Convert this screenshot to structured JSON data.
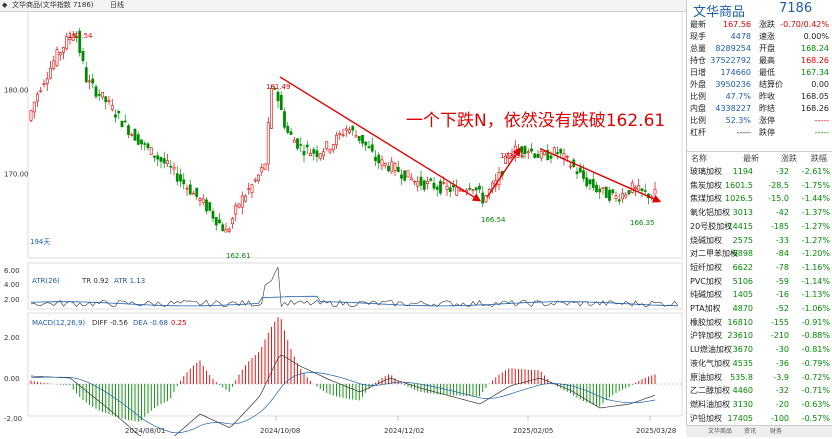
{
  "window": {
    "title_text": "文华商品(文华指数 7186)",
    "menu_label": "日线"
  },
  "annotation": {
    "text": "一个下跌N，依然没有跌破162.61",
    "color": "#e00000"
  },
  "price_labels": {
    "high_1": "187.54",
    "swing_high": "181.49",
    "swing_low": "162.61",
    "bounce_high": "173.34",
    "mid_low": "166.54",
    "recent_low": "166.35"
  },
  "panels": {
    "bars_label": "194天",
    "atr": {
      "name": "ATR(26)",
      "tr_label": "TR 0.92",
      "atr_label": "ATR 1.13"
    },
    "macd": {
      "name": "MACD(12,26,9)",
      "diff_label": "DIFF -0.56",
      "dea_label": "DEA -0.68",
      "macd_label": "0.25"
    }
  },
  "chart_data": [
    {
      "type": "candlestick",
      "title": "文华商品",
      "ytick_labels": [
        "180.00",
        "170.00"
      ],
      "ylim": [
        160,
        190
      ],
      "x_date_labels": [
        "2024/08/01",
        "2024/10/08",
        "2024/12/02",
        "2025/02/05",
        "2025/03/28"
      ],
      "key_prices": {
        "high": 187.54,
        "swing_high": 181.49,
        "low": 162.61,
        "bounce_high": 173.34,
        "mid_low": 166.54,
        "recent_low": 166.35,
        "last_close": 167.56
      },
      "colors": {
        "up": "#e00000",
        "down": "#008a00"
      },
      "trend_lines": [
        {
          "from": [
            181.49,
            "2024/10/08"
          ],
          "to": [
            166.54,
            "2025/01"
          ]
        },
        {
          "from": [
            166.54,
            "2025/01"
          ],
          "to": [
            173.34,
            "2025/01"
          ]
        },
        {
          "from": [
            173.34,
            "2025/01"
          ],
          "to": [
            166.35,
            "2025/03/28"
          ]
        }
      ]
    },
    {
      "type": "line",
      "title": "ATR(26)",
      "ytick_labels": [
        "6.00",
        "4.00",
        "2.00"
      ],
      "series": [
        {
          "name": "TR",
          "value": 0.92
        },
        {
          "name": "ATR",
          "value": 1.13
        }
      ]
    },
    {
      "type": "bar",
      "title": "MACD(12,26,9)",
      "ytick_labels": [
        "2.00",
        "0.00",
        "-2.00"
      ],
      "series": [
        {
          "name": "DIFF",
          "value": -0.56
        },
        {
          "name": "DEA",
          "value": -0.68
        },
        {
          "name": "MACD",
          "value": 0.25
        }
      ]
    }
  ],
  "quote": {
    "name": "文华商品",
    "code": "7186",
    "rows": [
      {
        "l1": "最新",
        "v1": "167.56",
        "c1": "red",
        "l2": "涨跌",
        "v2": "-0.70/0.42%",
        "c2": "red"
      },
      {
        "l1": "现手",
        "v1": "4478",
        "c1": "blue",
        "l2": "速涨",
        "v2": "0.00%",
        "c2": "dark"
      },
      {
        "l1": "总量",
        "v1": "8289254",
        "c1": "blue",
        "l2": "开盘",
        "v2": "168.24",
        "c2": "green"
      },
      {
        "l1": "持仓",
        "v1": "37522792",
        "c1": "blue",
        "l2": "最高",
        "v2": "168.26",
        "c2": "red"
      },
      {
        "l1": "日增",
        "v1": "174660",
        "c1": "blue",
        "l2": "最低",
        "v2": "167.34",
        "c2": "green"
      },
      {
        "l1": "外盘",
        "v1": "3950236",
        "c1": "blue",
        "l2": "结算价",
        "v2": "0.00",
        "c2": "dark"
      },
      {
        "l1": "比例",
        "v1": "47.7%",
        "c1": "blue",
        "l2": "昨收",
        "v2": "168.05",
        "c2": "dark"
      },
      {
        "l1": "内盘",
        "v1": "4338227",
        "c1": "blue",
        "l2": "昨结",
        "v2": "168.26",
        "c2": "dark"
      },
      {
        "l1": "比例",
        "v1": "52.3%",
        "c1": "blue",
        "l2": "涨停",
        "v2": "-----",
        "c2": "red"
      },
      {
        "l1": "杠杆",
        "v1": "-----",
        "c1": "dark",
        "l2": "跌停",
        "v2": "-----",
        "c2": "green"
      }
    ],
    "list_header": {
      "name": "名称",
      "last": "最新",
      "chg": "涨跌",
      "pct": "跌幅"
    },
    "list": [
      {
        "name": "玻璃加权",
        "last": "1194",
        "chg": "-32",
        "pct": "-2.61%"
      },
      {
        "name": "焦炭加权",
        "last": "1601.5",
        "chg": "-28.5",
        "pct": "-1.75%"
      },
      {
        "name": "焦煤加权",
        "last": "1026.5",
        "chg": "-15.0",
        "pct": "-1.44%"
      },
      {
        "name": "氧化铝加权",
        "last": "3013",
        "chg": "-42",
        "pct": "-1.37%"
      },
      {
        "name": "20号胶加权",
        "last": "14415",
        "chg": "-185",
        "pct": "-1.27%"
      },
      {
        "name": "烧碱加权",
        "last": "2575",
        "chg": "-33",
        "pct": "-1.27%"
      },
      {
        "name": "对二甲苯加权",
        "last": "6898",
        "chg": "-84",
        "pct": "-1.20%"
      },
      {
        "name": "短纤加权",
        "last": "6622",
        "chg": "-78",
        "pct": "-1.16%"
      },
      {
        "name": "PVC加权",
        "last": "5106",
        "chg": "-59",
        "pct": "-1.14%"
      },
      {
        "name": "纯碱加权",
        "last": "1405",
        "chg": "-16",
        "pct": "-1.13%"
      },
      {
        "name": "PTA加权",
        "last": "4870",
        "chg": "-52",
        "pct": "-1.06%"
      },
      {
        "name": "橡胶加权",
        "last": "16810",
        "chg": "-155",
        "pct": "-0.91%"
      },
      {
        "name": "沪锌加权",
        "last": "23610",
        "chg": "-210",
        "pct": "-0.88%"
      },
      {
        "name": "LU燃油加权",
        "last": "3670",
        "chg": "-30",
        "pct": "-0.81%"
      },
      {
        "name": "液化气加权",
        "last": "4535",
        "chg": "-36",
        "pct": "-0.79%"
      },
      {
        "name": "原油加权",
        "last": "535.8",
        "chg": "-3.9",
        "pct": "-0.72%"
      },
      {
        "name": "乙二醇加权",
        "last": "4460",
        "chg": "-32",
        "pct": "-0.71%"
      },
      {
        "name": "燃料油加权",
        "last": "3130",
        "chg": "-20",
        "pct": "-0.63%"
      },
      {
        "name": "沪铅加权",
        "last": "17405",
        "chg": "-100",
        "pct": "-0.57%"
      }
    ],
    "tabs": [
      "文华商品",
      "资讯",
      "财务"
    ]
  }
}
